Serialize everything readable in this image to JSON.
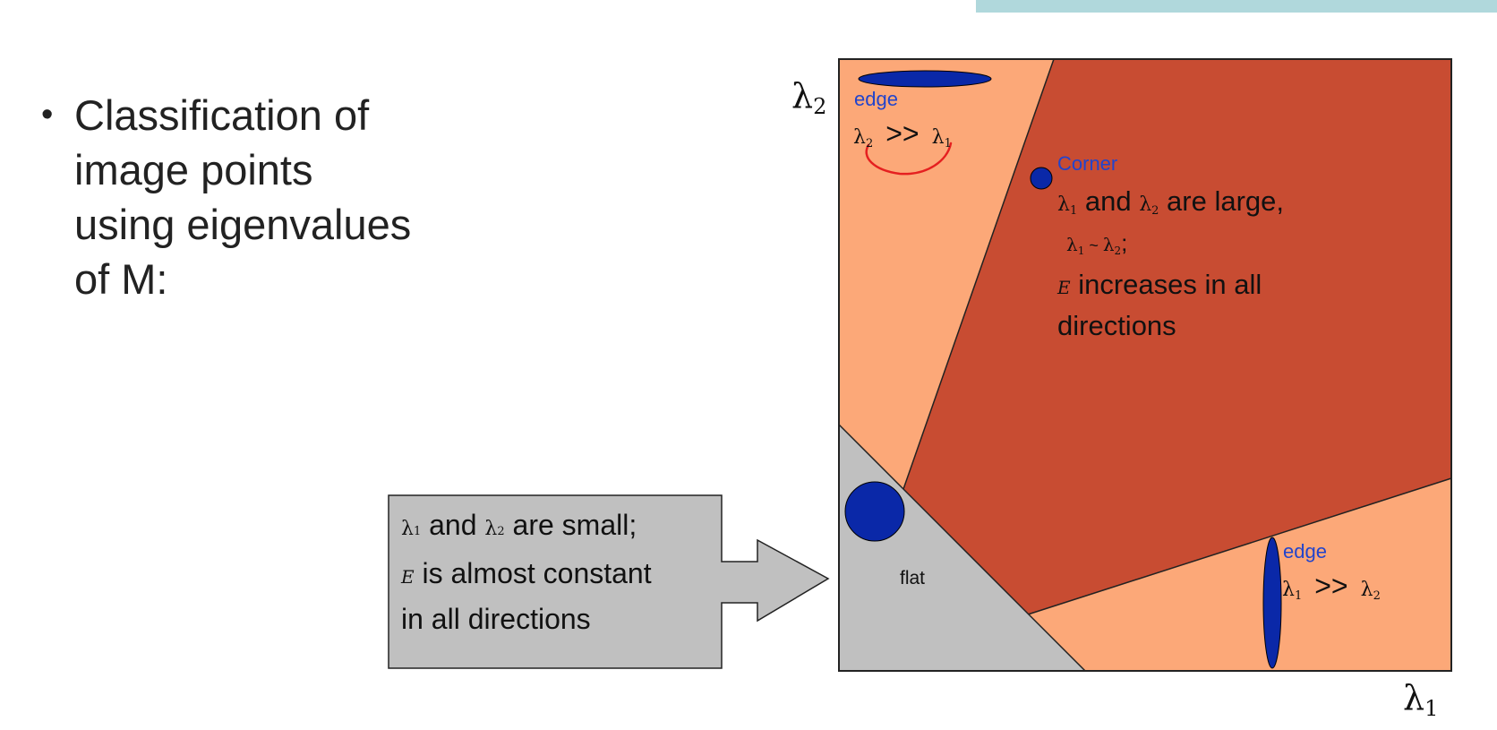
{
  "bullet": {
    "text": "Classification of\nimage points\nusing eigenvalues\nof M:"
  },
  "axes": {
    "y_label": "λ",
    "y_sub": "2",
    "x_label": "λ",
    "x_sub": "1"
  },
  "regions": {
    "edge_top": {
      "label": "edge",
      "rel_left": "λ",
      "rel_left_sub": "2",
      "rel_op": ">>",
      "rel_right": "λ",
      "rel_right_sub": "1"
    },
    "corner": {
      "label": "Corner",
      "line1_l1": "λ",
      "line1_l1_sub": "1",
      "line1_mid": " and ",
      "line1_l2": "λ",
      "line1_l2_sub": "2",
      "line1_end": " are large,",
      "line2_l1": "λ",
      "line2_l1_sub": "1",
      "line2_op": " ~ ",
      "line2_l2": "λ",
      "line2_l2_sub": "2",
      "line2_end": ";",
      "line3_e": "E",
      "line3_text": " increases in all",
      "line4": "directions"
    },
    "flat": {
      "label": "flat"
    },
    "edge_right": {
      "label": "edge",
      "rel_left": "λ",
      "rel_left_sub": "1",
      "rel_op": ">>",
      "rel_right": "λ",
      "rel_right_sub": "2"
    }
  },
  "callout": {
    "l1": "λ",
    "l1_sub": "1",
    "mid": " and ",
    "l2": "λ",
    "l2_sub": "2",
    "end": " are small;",
    "e": "E",
    "line2": " is almost constant",
    "line3": "in all directions"
  },
  "colors": {
    "edge_region": "#fca878",
    "corner_region": "#c84c32",
    "flat_region": "#c0c0c0",
    "ellipse": "#0a28a8",
    "label_blue": "#2244cc",
    "annotation": "#e52020"
  }
}
